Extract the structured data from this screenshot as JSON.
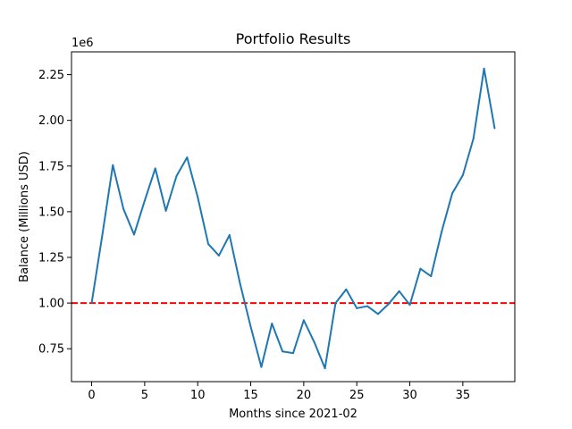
{
  "chart_data": {
    "type": "line",
    "title": "Portfolio Results",
    "xlabel": "Months since 2021-02",
    "ylabel": "Balance (Millions USD)",
    "y_offset_label": "1e6",
    "xlim": [
      -1.9,
      39.9
    ],
    "ylim": [
      570000,
      2375000
    ],
    "xticks": [
      0,
      5,
      10,
      15,
      20,
      25,
      30,
      35
    ],
    "xtick_labels": [
      "0",
      "5",
      "10",
      "15",
      "20",
      "25",
      "30",
      "35"
    ],
    "yticks": [
      750000,
      1000000,
      1250000,
      1500000,
      1750000,
      2000000,
      2250000
    ],
    "ytick_labels": [
      "0.75",
      "1.00",
      "1.25",
      "1.50",
      "1.75",
      "2.00",
      "2.25"
    ],
    "grid": false,
    "series": [
      {
        "color": "#1f77b4",
        "x": [
          0,
          1,
          2,
          3,
          4,
          5,
          6,
          7,
          8,
          9,
          10,
          11,
          12,
          13,
          14,
          15,
          16,
          17,
          18,
          19,
          20,
          21,
          22,
          23,
          24,
          25,
          26,
          27,
          28,
          29,
          30,
          31,
          32,
          33,
          34,
          35,
          36,
          37,
          38
        ],
        "values": [
          1000000,
          1370000,
          1755000,
          1515000,
          1375000,
          1560000,
          1737000,
          1505000,
          1695000,
          1797000,
          1580000,
          1323000,
          1260000,
          1372000,
          1105000,
          870000,
          650000,
          888000,
          735000,
          726000,
          906000,
          785000,
          643000,
          1000000,
          1075000,
          972000,
          983000,
          940000,
          995000,
          1065000,
          990000,
          1188000,
          1147000,
          1390000,
          1600000,
          1700000,
          1900000,
          2283000,
          1957000
        ]
      }
    ],
    "reference_lines": [
      {
        "y": 1000000,
        "color": "#ff0000",
        "style": "dashed"
      }
    ]
  }
}
